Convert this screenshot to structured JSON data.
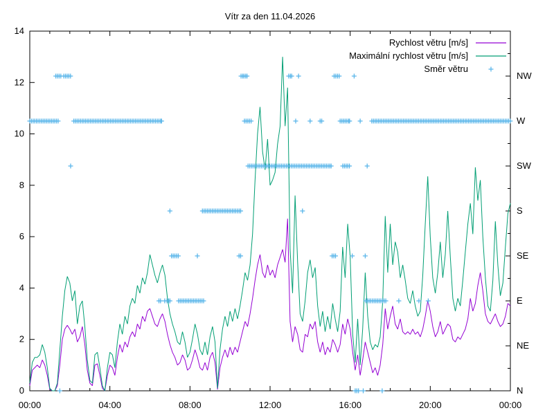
{
  "title": "Vítr za den 11.04.2026",
  "colors": {
    "background": "#ffffff",
    "axis": "#000000",
    "avg_speed": "#9400d3",
    "max_speed": "#009e73",
    "direction": "#56b4e9"
  },
  "chart_data": {
    "type": "line",
    "title": "Vítr za den 11.04.2026",
    "x_axis": {
      "unit": "time",
      "range_hours": [
        0,
        24
      ],
      "major_ticks_hours": [
        0,
        4,
        8,
        12,
        16,
        20,
        24
      ],
      "major_tick_labels": [
        "00:00",
        "04:00",
        "08:00",
        "12:00",
        "16:00",
        "20:00",
        "00:00"
      ],
      "minor_tick_every_hours": 1
    },
    "y_axis_left": {
      "label": "",
      "range": [
        0,
        14
      ],
      "tick_values": [
        0,
        2,
        4,
        6,
        8,
        10,
        12,
        14
      ],
      "tick_labels": [
        "0",
        "2",
        "4",
        "6",
        "8",
        "10",
        "12",
        "14"
      ]
    },
    "y_axis_right": {
      "kind": "wind-direction",
      "labels": [
        "N",
        "NE",
        "E",
        "SE",
        "S",
        "SW",
        "W",
        "NW"
      ],
      "label_positions": [
        0,
        1.75,
        3.5,
        5.25,
        7,
        8.75,
        10.5,
        12.25
      ],
      "minor_tick_every": 0.875
    },
    "legend": {
      "position": "top-right-inside"
    },
    "sample_step_hours": 0.125,
    "series": [
      {
        "name": "Rychlost větru [m/s]",
        "style": "line",
        "color": "#9400d3",
        "values": [
          0.2,
          0.8,
          0.9,
          1.0,
          0.9,
          1.2,
          1.0,
          0.6,
          0.05,
          0.0,
          0.0,
          0.2,
          1.0,
          2.0,
          2.4,
          2.55,
          2.4,
          2.2,
          2.4,
          1.9,
          2.1,
          2.5,
          1.8,
          0.8,
          0.3,
          0.2,
          1.0,
          1.05,
          0.6,
          0.1,
          0.0,
          0.6,
          1.0,
          0.9,
          0.6,
          1.3,
          1.8,
          1.5,
          1.9,
          1.7,
          2.1,
          2.3,
          2.1,
          2.6,
          2.4,
          2.9,
          2.7,
          3.1,
          3.2,
          2.9,
          2.6,
          2.5,
          2.8,
          3.0,
          2.7,
          2.2,
          1.8,
          1.5,
          1.3,
          1.0,
          1.1,
          1.4,
          1.2,
          0.8,
          0.9,
          1.2,
          1.6,
          1.3,
          0.9,
          0.8,
          1.1,
          0.8,
          1.3,
          1.5,
          1.1,
          0.05,
          0.9,
          1.3,
          1.6,
          1.3,
          1.7,
          1.4,
          1.7,
          1.5,
          1.9,
          2.3,
          2.7,
          2.5,
          3.0,
          3.6,
          4.3,
          4.9,
          5.3,
          4.6,
          4.4,
          4.9,
          4.5,
          4.7,
          4.4,
          4.9,
          5.2,
          5.5,
          5.0,
          6.7,
          2.7,
          1.9,
          2.5,
          2.2,
          1.6,
          1.5,
          2.2,
          2.1,
          2.6,
          2.4,
          2.7,
          1.9,
          1.5,
          1.9,
          1.4,
          1.7,
          1.5,
          2.0,
          1.8,
          1.5,
          1.8,
          2.6,
          2.2,
          2.8,
          2.4,
          1.5,
          0.8,
          1.4,
          0.6,
          1.2,
          1.9,
          1.5,
          1.1,
          0.7,
          0.9,
          0.6,
          1.0,
          1.8,
          3.2,
          2.4,
          2.9,
          3.3,
          2.6,
          2.4,
          2.8,
          2.3,
          2.2,
          2.3,
          2.2,
          2.4,
          2.2,
          2.3,
          2.1,
          2.4,
          2.9,
          3.5,
          3.1,
          2.5,
          2.1,
          2.3,
          2.7,
          2.2,
          2.4,
          2.6,
          2.5,
          2.0,
          1.9,
          2.1,
          2.0,
          2.2,
          2.4,
          2.8,
          3.6,
          3.1,
          3.4,
          4.1,
          4.6,
          3.9,
          3.0,
          2.7,
          2.6,
          2.8,
          3.0,
          2.7,
          2.5,
          2.6,
          2.9,
          3.4,
          3.3
        ]
      },
      {
        "name": "Maximální rychlost větru [m/s]",
        "style": "line",
        "color": "#009e73",
        "values": [
          0.3,
          1.1,
          1.3,
          1.3,
          1.4,
          1.8,
          1.5,
          0.9,
          0.1,
          0.0,
          0.0,
          0.3,
          1.6,
          2.9,
          3.9,
          4.45,
          4.2,
          3.5,
          3.9,
          2.6,
          3.3,
          3.5,
          2.5,
          1.2,
          0.4,
          0.3,
          1.4,
          1.5,
          0.9,
          0.2,
          0.0,
          0.9,
          1.5,
          1.4,
          0.9,
          1.9,
          2.6,
          2.2,
          2.9,
          2.6,
          3.3,
          3.6,
          3.4,
          4.1,
          3.8,
          4.4,
          4.15,
          4.6,
          5.3,
          4.9,
          4.5,
          4.2,
          4.6,
          4.9,
          4.5,
          3.6,
          3.0,
          2.6,
          2.3,
          1.9,
          1.8,
          2.3,
          1.9,
          1.3,
          1.5,
          2.0,
          2.6,
          2.2,
          1.6,
          1.4,
          1.9,
          1.4,
          2.1,
          2.5,
          1.9,
          0.1,
          1.6,
          2.4,
          2.9,
          2.5,
          3.1,
          2.7,
          3.2,
          2.8,
          3.3,
          3.9,
          4.6,
          4.3,
          4.9,
          6.1,
          8.2,
          10.0,
          11.05,
          9.3,
          8.6,
          9.8,
          8.0,
          8.2,
          8.5,
          9.6,
          10.3,
          13.0,
          10.3,
          11.8,
          5.5,
          3.8,
          7.6,
          5.0,
          3.0,
          2.7,
          3.5,
          4.6,
          5.1,
          4.4,
          4.8,
          3.3,
          2.5,
          3.1,
          2.3,
          2.9,
          2.4,
          3.4,
          2.8,
          2.3,
          3.1,
          5.6,
          4.4,
          6.5,
          5.2,
          2.2,
          1.1,
          2.8,
          1.0,
          2.4,
          4.6,
          2.9,
          1.9,
          1.6,
          1.8,
          1.7,
          2.1,
          3.5,
          6.8,
          4.6,
          6.5,
          4.9,
          5.8,
          5.4,
          4.4,
          4.9,
          4.3,
          3.6,
          3.4,
          3.9,
          3.3,
          2.9,
          3.1,
          4.5,
          6.5,
          8.35,
          6.0,
          4.4,
          3.8,
          4.6,
          5.8,
          4.4,
          5.3,
          7.0,
          5.2,
          3.6,
          3.1,
          3.6,
          3.3,
          4.3,
          5.4,
          6.5,
          7.3,
          6.1,
          8.7,
          7.4,
          8.2,
          6.0,
          4.4,
          3.3,
          3.1,
          4.3,
          6.6,
          4.9,
          3.7,
          4.2,
          5.6,
          6.9,
          7.3
        ]
      },
      {
        "name": "Směr větru",
        "style": "points",
        "marker": "plus",
        "color": "#56b4e9",
        "marker_step_hours": 0.0833,
        "segments": [
          {
            "dir": "W",
            "from": 0.0,
            "to": 1.45
          },
          {
            "dir": "NW",
            "from": 1.3,
            "to": 1.55
          },
          {
            "dir": "N",
            "from": 1.5,
            "to": 1.5
          },
          {
            "dir": "NW",
            "from": 1.7,
            "to": 2.05
          },
          {
            "dir": "SW",
            "from": 2.04,
            "to": 2.04
          },
          {
            "dir": "W",
            "from": 2.2,
            "to": 6.58
          },
          {
            "dir": "E",
            "from": 6.45,
            "to": 6.53
          },
          {
            "dir": "E",
            "from": 6.74,
            "to": 6.74
          },
          {
            "dir": "E",
            "from": 6.85,
            "to": 7.0
          },
          {
            "dir": "S",
            "from": 7.0,
            "to": 7.0
          },
          {
            "dir": "SE",
            "from": 7.08,
            "to": 7.42
          },
          {
            "dir": "E",
            "from": 7.43,
            "to": 8.7
          },
          {
            "dir": "SE",
            "from": 8.37,
            "to": 8.37
          },
          {
            "dir": "S",
            "from": 8.62,
            "to": 10.53
          },
          {
            "dir": "SE",
            "from": 10.45,
            "to": 10.53
          },
          {
            "dir": "NW",
            "from": 10.55,
            "to": 10.7
          },
          {
            "dir": "NW",
            "from": 10.78,
            "to": 10.85
          },
          {
            "dir": "W",
            "from": 10.72,
            "to": 11.08
          },
          {
            "dir": "SW",
            "from": 10.9,
            "to": 15.05
          },
          {
            "dir": "NW",
            "from": 12.93,
            "to": 13.08
          },
          {
            "dir": "W",
            "from": 13.28,
            "to": 13.28
          },
          {
            "dir": "NW",
            "from": 13.42,
            "to": 13.45
          },
          {
            "dir": "S",
            "from": 13.62,
            "to": 13.62
          },
          {
            "dir": "W",
            "from": 14.0,
            "to": 14.0
          },
          {
            "dir": "W",
            "from": 14.5,
            "to": 14.58
          },
          {
            "dir": "SE",
            "from": 15.1,
            "to": 15.3
          },
          {
            "dir": "NW",
            "from": 15.2,
            "to": 15.45
          },
          {
            "dir": "W",
            "from": 15.5,
            "to": 15.97
          },
          {
            "dir": "SW",
            "from": 15.63,
            "to": 16.0
          },
          {
            "dir": "SE",
            "from": 16.1,
            "to": 16.1
          },
          {
            "dir": "NW",
            "from": 16.2,
            "to": 16.2
          },
          {
            "dir": "N",
            "from": 16.25,
            "to": 16.45
          },
          {
            "dir": "W",
            "from": 16.5,
            "to": 16.5
          },
          {
            "dir": "N",
            "from": 16.65,
            "to": 16.65
          },
          {
            "dir": "SE",
            "from": 16.75,
            "to": 16.75
          },
          {
            "dir": "E",
            "from": 16.78,
            "to": 17.8
          },
          {
            "dir": "SW",
            "from": 16.85,
            "to": 16.85
          },
          {
            "dir": "W",
            "from": 17.08,
            "to": 24.0
          },
          {
            "dir": "N",
            "from": 17.6,
            "to": 17.6
          },
          {
            "dir": "E",
            "from": 18.43,
            "to": 18.43
          },
          {
            "dir": "E",
            "from": 19.43,
            "to": 19.43
          },
          {
            "dir": "E",
            "from": 19.9,
            "to": 19.9
          }
        ]
      }
    ]
  }
}
